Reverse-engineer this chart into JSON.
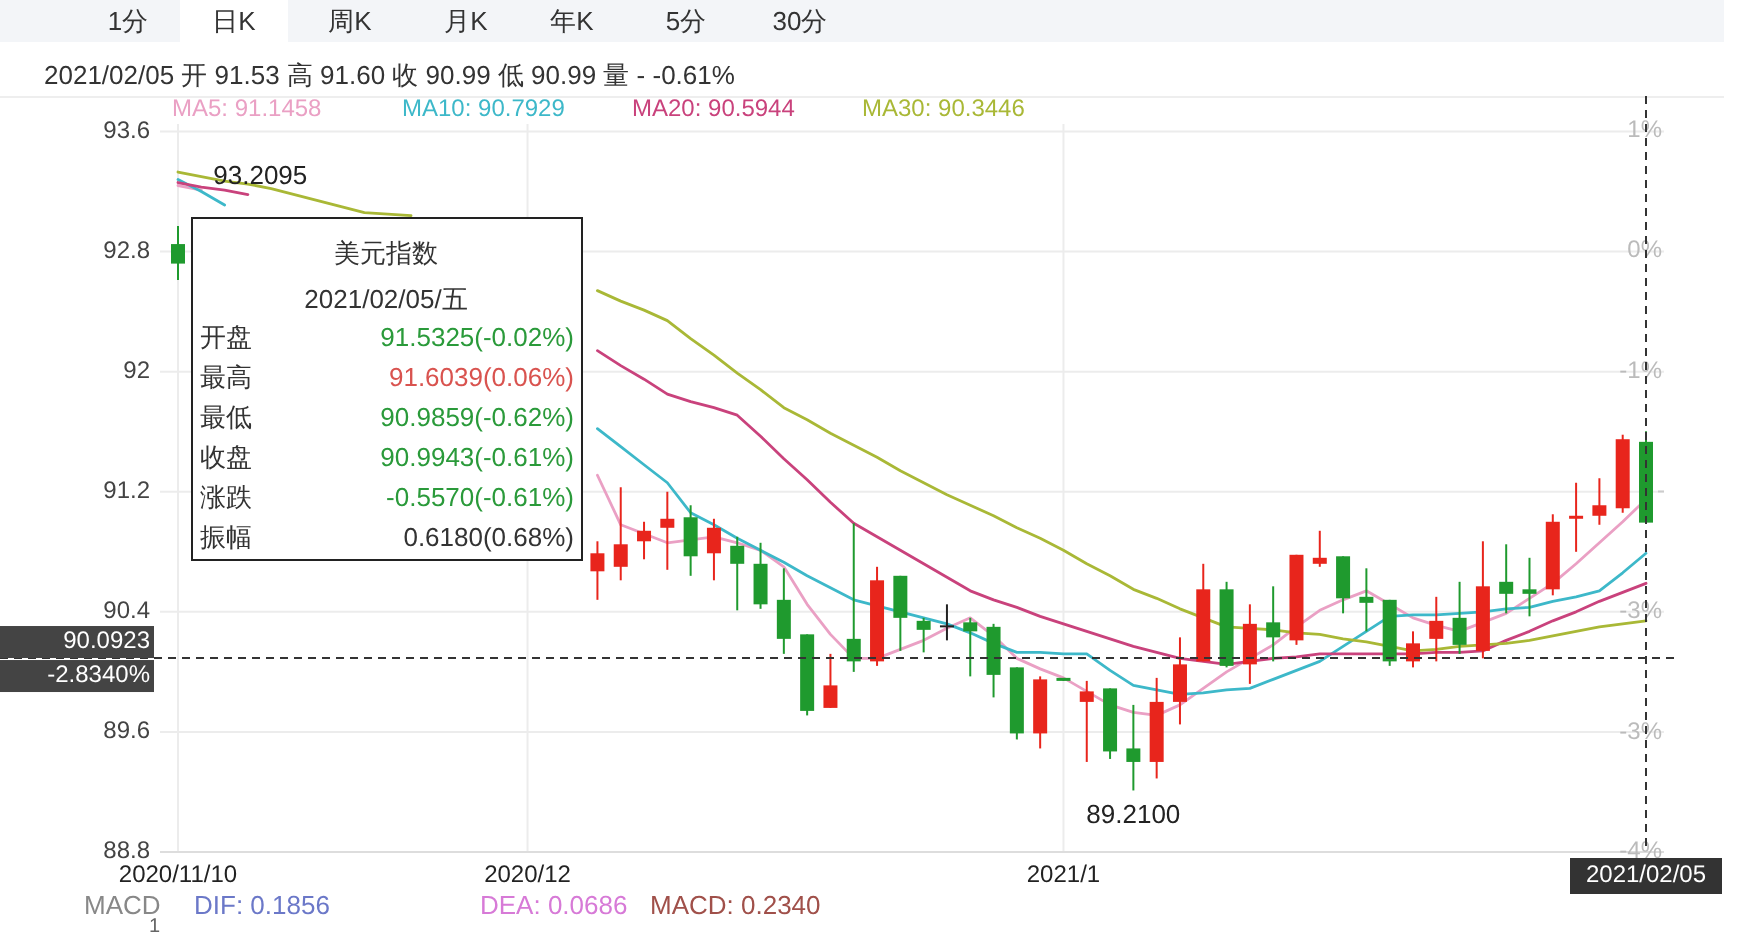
{
  "chart_data": {
    "type": "candlestick",
    "categories": [
      "2020/11/10",
      null,
      null,
      null,
      null,
      null,
      null,
      null,
      null,
      null,
      null,
      null,
      null,
      null,
      null,
      "2020/12",
      null,
      null,
      null,
      null,
      null,
      null,
      null,
      null,
      null,
      null,
      null,
      null,
      null,
      null,
      null,
      null,
      null,
      null,
      null,
      null,
      null,
      null,
      "2021/1",
      null,
      null,
      null,
      null,
      null,
      null,
      null,
      null,
      null,
      null,
      null,
      null,
      null,
      null,
      null,
      null,
      null,
      null,
      null,
      null,
      null,
      null,
      null,
      null,
      "2021/02/05"
    ],
    "ohlc": [
      [
        92.85,
        92.97,
        92.61,
        92.72
      ],
      null,
      null,
      null,
      null,
      null,
      null,
      null,
      null,
      null,
      null,
      null,
      null,
      null,
      null,
      null,
      null,
      null,
      [
        90.67,
        90.87,
        90.48,
        90.79
      ],
      [
        90.7,
        91.23,
        90.61,
        90.85
      ],
      [
        90.87,
        91.0,
        90.75,
        90.94
      ],
      [
        90.96,
        91.2,
        90.68,
        91.02
      ],
      [
        91.03,
        91.11,
        90.64,
        90.77
      ],
      [
        90.79,
        91.02,
        90.61,
        90.96
      ],
      [
        90.84,
        90.9,
        90.41,
        90.72
      ],
      [
        90.72,
        90.86,
        90.42,
        90.45
      ],
      [
        90.48,
        90.69,
        90.12,
        90.22
      ],
      [
        90.25,
        90.25,
        89.71,
        89.74
      ],
      [
        89.76,
        90.12,
        89.76,
        89.91
      ],
      [
        90.22,
        90.99,
        90.0,
        90.07
      ],
      [
        90.07,
        90.7,
        90.04,
        90.61
      ],
      [
        90.64,
        90.64,
        90.14,
        90.36
      ],
      [
        90.34,
        90.36,
        90.13,
        90.28
      ],
      [
        90.31,
        90.45,
        90.21,
        90.31
      ],
      [
        90.33,
        90.36,
        89.97,
        90.27
      ],
      [
        90.3,
        90.32,
        89.83,
        89.98
      ],
      [
        90.03,
        90.03,
        89.55,
        89.59
      ],
      [
        89.59,
        89.97,
        89.49,
        89.95
      ],
      [
        89.96,
        89.96,
        89.94,
        89.94
      ],
      [
        89.8,
        89.94,
        89.4,
        89.87
      ],
      [
        89.89,
        89.89,
        89.42,
        89.47
      ],
      [
        89.49,
        89.78,
        89.21,
        89.4
      ],
      [
        89.4,
        89.96,
        89.29,
        89.8
      ],
      [
        89.8,
        90.23,
        89.65,
        90.05
      ],
      [
        90.07,
        90.72,
        90.07,
        90.55
      ],
      [
        90.55,
        90.6,
        90.03,
        90.04
      ],
      [
        90.05,
        90.45,
        89.92,
        90.32
      ],
      [
        90.33,
        90.57,
        90.07,
        90.23
      ],
      [
        90.21,
        90.78,
        90.18,
        90.78
      ],
      [
        90.72,
        90.94,
        90.7,
        90.76
      ],
      [
        90.77,
        90.77,
        90.39,
        90.49
      ],
      [
        90.5,
        90.69,
        90.27,
        90.46
      ],
      [
        90.48,
        90.48,
        90.04,
        90.07
      ],
      [
        90.07,
        90.27,
        90.03,
        90.19
      ],
      [
        90.22,
        90.5,
        90.07,
        90.34
      ],
      [
        90.36,
        90.6,
        90.12,
        90.18
      ],
      [
        90.14,
        90.87,
        90.09,
        90.57
      ],
      [
        90.6,
        90.85,
        90.39,
        90.52
      ],
      [
        90.55,
        90.76,
        90.37,
        90.52
      ],
      [
        90.55,
        91.05,
        90.51,
        91.0
      ],
      [
        91.02,
        91.26,
        90.8,
        91.04
      ],
      [
        91.04,
        91.29,
        90.98,
        91.11
      ],
      [
        91.09,
        91.58,
        91.06,
        91.55
      ],
      [
        91.5325,
        91.6039,
        90.9859,
        90.9943
      ]
    ],
    "colors": [
      "#1f9a2e",
      null,
      null,
      null,
      null,
      null,
      null,
      null,
      null,
      null,
      null,
      null,
      null,
      null,
      null,
      null,
      null,
      null,
      "#e8251c",
      "#e8251c",
      "#e8251c",
      "#e8251c",
      "#1f9a2e",
      "#e8251c",
      "#1f9a2e",
      "#1f9a2e",
      "#1f9a2e",
      "#1f9a2e",
      "#e8251c",
      "#1f9a2e",
      "#e8251c",
      "#1f9a2e",
      "#1f9a2e",
      "#222222",
      "#1f9a2e",
      "#1f9a2e",
      "#1f9a2e",
      "#e8251c",
      "#1f9a2e",
      "#e8251c",
      "#1f9a2e",
      "#1f9a2e",
      "#e8251c",
      "#e8251c",
      "#e8251c",
      "#1f9a2e",
      "#e8251c",
      "#1f9a2e",
      "#e8251c",
      "#e8251c",
      "#1f9a2e",
      "#1f9a2e",
      "#1f9a2e",
      "#e8251c",
      "#e8251c",
      "#1f9a2e",
      "#e8251c",
      "#1f9a2e",
      "#1f9a2e",
      "#e8251c",
      "#e8251c",
      "#e8251c",
      "#e8251c",
      "#1f9a2e"
    ],
    "series": [
      {
        "name": "MA5: 91.1458",
        "type": "line",
        "color": "#eaa0c4",
        "values": [
          93.24,
          93.21,
          null,
          null,
          null,
          null,
          null,
          null,
          null,
          null,
          null,
          null,
          null,
          null,
          null,
          null,
          null,
          null,
          91.31,
          90.98,
          90.92,
          90.86,
          90.88,
          90.9,
          90.86,
          90.81,
          90.7,
          90.45,
          90.25,
          90.09,
          90.09,
          90.15,
          90.21,
          90.29,
          90.36,
          90.24,
          90.09,
          90.02,
          89.96,
          89.87,
          89.78,
          89.73,
          89.71,
          89.78,
          89.89,
          90.0,
          90.09,
          90.18,
          90.3,
          90.41,
          90.48,
          90.54,
          90.45,
          90.36,
          90.31,
          90.27,
          90.33,
          90.39,
          90.49,
          90.59,
          90.72,
          90.86,
          91.0,
          91.15
        ]
      },
      {
        "name": "MA10: 90.7929",
        "type": "line",
        "color": "#3db8c9",
        "values": [
          93.28,
          93.2,
          93.11,
          null,
          null,
          null,
          null,
          null,
          null,
          null,
          null,
          null,
          null,
          null,
          null,
          null,
          null,
          null,
          91.62,
          91.5,
          91.38,
          91.26,
          91.06,
          90.98,
          90.89,
          90.81,
          90.73,
          90.64,
          90.56,
          90.48,
          90.44,
          90.4,
          90.36,
          90.32,
          90.26,
          90.19,
          90.13,
          90.13,
          90.12,
          90.12,
          90.01,
          89.91,
          89.88,
          89.85,
          89.86,
          89.88,
          89.89,
          89.95,
          90.01,
          90.07,
          90.17,
          90.27,
          90.37,
          90.38,
          90.38,
          90.39,
          90.4,
          90.42,
          90.43,
          90.47,
          90.5,
          90.54,
          90.66,
          90.79
        ]
      },
      {
        "name": "MA20: 90.5944",
        "type": "line",
        "color": "#c9427c",
        "values": [
          93.26,
          93.23,
          93.21,
          93.18,
          null,
          null,
          null,
          null,
          null,
          null,
          null,
          null,
          null,
          null,
          null,
          null,
          null,
          null,
          92.14,
          92.04,
          91.95,
          91.85,
          91.8,
          91.76,
          91.71,
          91.57,
          91.42,
          91.28,
          91.13,
          90.99,
          90.9,
          90.81,
          90.72,
          90.63,
          90.54,
          90.48,
          90.43,
          90.37,
          90.32,
          90.27,
          90.22,
          90.17,
          90.13,
          90.09,
          90.07,
          90.05,
          90.07,
          90.09,
          90.1,
          90.12,
          90.12,
          90.12,
          90.12,
          90.12,
          90.13,
          90.13,
          90.14,
          90.21,
          90.27,
          90.34,
          90.4,
          90.47,
          90.53,
          90.59
        ]
      },
      {
        "name": "MA30: 90.3446",
        "type": "line",
        "color": "#a9b836",
        "values": [
          93.33,
          93.3,
          93.27,
          93.25,
          93.22,
          93.18,
          93.14,
          93.1,
          93.06,
          93.05,
          93.04,
          null,
          null,
          null,
          null,
          null,
          null,
          null,
          92.54,
          92.47,
          92.41,
          92.34,
          92.22,
          92.11,
          91.99,
          91.88,
          91.76,
          91.68,
          91.59,
          91.51,
          91.43,
          91.34,
          91.26,
          91.18,
          91.11,
          91.04,
          90.96,
          90.89,
          90.81,
          90.72,
          90.64,
          90.55,
          90.49,
          90.42,
          90.36,
          90.3,
          90.29,
          90.28,
          90.26,
          90.25,
          90.22,
          90.2,
          90.17,
          90.14,
          90.15,
          90.17,
          90.18,
          90.19,
          90.21,
          90.24,
          90.27,
          90.3,
          90.32,
          90.34
        ]
      }
    ],
    "ylim": [
      88.8,
      93.65
    ],
    "yticks": [
      93.6,
      92.8,
      92,
      91.2,
      90.4,
      89.6,
      88.8
    ],
    "y2lim": [
      -4.23,
      1.0
    ],
    "y2ticks": [
      {
        "value": 0.95,
        "label": "1%"
      },
      {
        "value": 0.09,
        "label": "0%"
      },
      {
        "value": -0.78,
        "label": "-1%"
      },
      {
        "value": -1.64,
        "label": null
      },
      {
        "value": -2.5,
        "label": "-3%"
      },
      {
        "value": -3.37,
        "label": "-3%"
      },
      {
        "value": -4.23,
        "label": "-4%"
      }
    ],
    "grid": true,
    "legend": "top left",
    "ref_lines": [
      {
        "axis": "y",
        "value": 90.0923,
        "label": "90.0923",
        "line_style": "dashed"
      },
      {
        "axis": "x",
        "value": "2021/02/05",
        "line_style": "dashed"
      }
    ],
    "annotations": [
      "1分",
      "日K",
      "周K",
      "月K",
      "年K",
      "5分",
      "30分",
      "2021/02/05 开 91.53 高 91.60 收 90.99 低 90.99 量 - -0.61%",
      "美元指数",
      "2021/02/05/五",
      "开盘",
      "最高",
      "最低",
      "收盘",
      "涨跌",
      "振幅",
      "91.5325(-0.02%)",
      "91.6039(0.06%)",
      "90.9859(-0.62%)",
      "90.9943(-0.61%)",
      "-0.5570(-0.61%)",
      "0.6180(0.68%)",
      "MACD",
      "DIF: 0.1856",
      "DEA: 0.0686",
      "MACD: 0.2340",
      "1",
      "93.2095",
      "89.2100",
      "-2.8340%"
    ]
  }
}
